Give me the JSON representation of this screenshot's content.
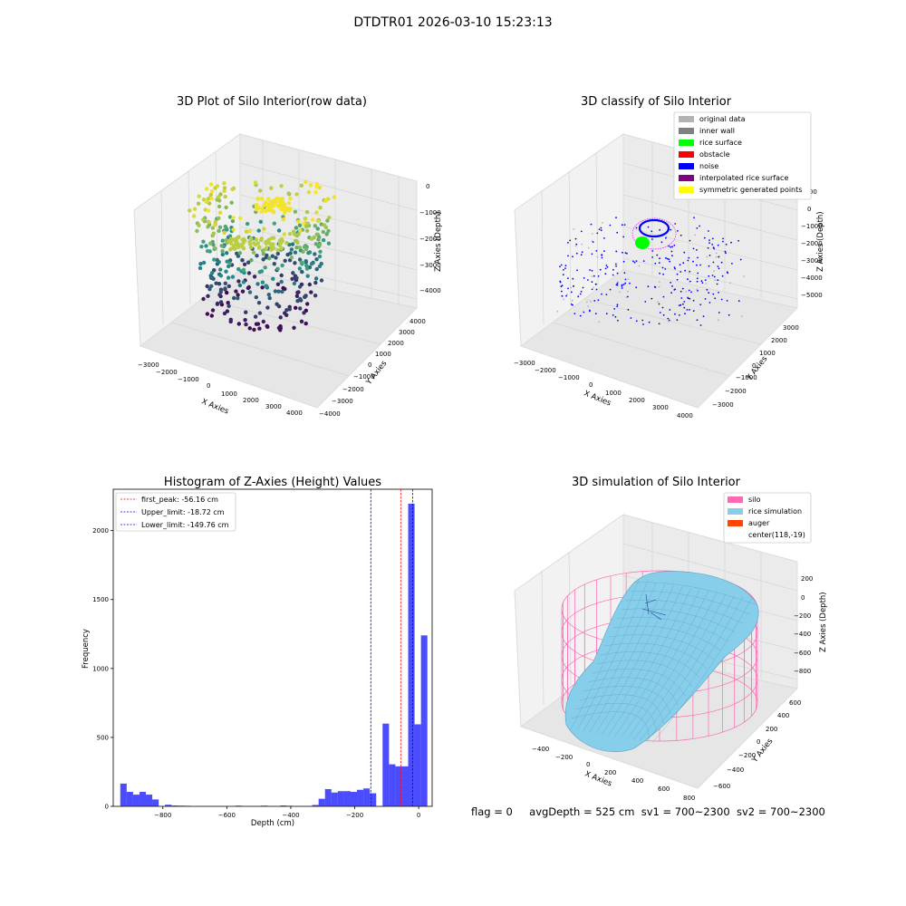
{
  "suptitle": "DTDTR01 2026-03-10 15:23:13",
  "footer": {
    "flag": "flag = 0",
    "avg": "avgDepth = 525 cm",
    "sv1": "sv1 = 700~2300",
    "sv2": "sv2 = 700~2300"
  },
  "chart_data": [
    {
      "type": "scatter",
      "title": "3D Plot of Silo Interior(row data)",
      "xlabel": "X Axies",
      "ylabel": "Y Axies",
      "zlabel": "Z Axies (Depth)",
      "xticks": [
        "−3000",
        "−2000",
        "−1000",
        "0",
        "1000",
        "2000",
        "3000",
        "4000"
      ],
      "yticks": [
        "−4000",
        "−3000",
        "−2000",
        "−1000",
        "0",
        "1000",
        "2000",
        "3000",
        "4000"
      ],
      "zticks": [
        "−4000",
        "−3000",
        "−2000",
        "−1000",
        "0"
      ],
      "colors": {
        "low": "#440154",
        "mid": "#21918c",
        "high": "#fde725"
      }
    },
    {
      "type": "scatter",
      "title": "3D classify of Silo Interior",
      "xlabel": "X Axies",
      "ylabel": "Y Axies",
      "zlabel": "Z Axies (Depth)",
      "xticks": [
        "−3000",
        "−2000",
        "−1000",
        "0",
        "1000",
        "2000",
        "3000",
        "4000"
      ],
      "yticks": [
        "−3000",
        "−2000",
        "−1000",
        "0",
        "1000",
        "2000",
        "3000"
      ],
      "zticks": [
        "−5000",
        "−4000",
        "−3000",
        "−2000",
        "−1000",
        "0",
        "1000",
        "2000"
      ],
      "legend_position": "top-right",
      "legend": [
        {
          "label": "original data",
          "color": "#b3b3b3"
        },
        {
          "label": "inner wall",
          "color": "#808080"
        },
        {
          "label": "rice surface",
          "color": "#00ff00"
        },
        {
          "label": "obstacle",
          "color": "#ff0000"
        },
        {
          "label": "noise",
          "color": "#0000ff"
        },
        {
          "label": "interpolated rice surface",
          "color": "#800080"
        },
        {
          "label": "symmetric generated points",
          "color": "#ffff00"
        }
      ]
    },
    {
      "type": "bar",
      "title": "Histogram of Z-Axies (Height) Values",
      "xlabel": "Depth (cm)",
      "ylabel": "Frequency",
      "xlim": [
        -955,
        42
      ],
      "ylim": [
        0,
        2300
      ],
      "xticks": [
        -800,
        -600,
        -400,
        -200,
        0
      ],
      "xtick_labels": [
        "−800",
        "−600",
        "−400",
        "−200",
        "0"
      ],
      "yticks": [
        0,
        500,
        1000,
        1500,
        2000
      ],
      "bar_color": "#0000ff",
      "bins": [
        {
          "x0": -933,
          "x1": -913,
          "v": 165
        },
        {
          "x0": -913,
          "x1": -893,
          "v": 105
        },
        {
          "x0": -893,
          "x1": -873,
          "v": 85
        },
        {
          "x0": -873,
          "x1": -853,
          "v": 105
        },
        {
          "x0": -853,
          "x1": -833,
          "v": 85
        },
        {
          "x0": -833,
          "x1": -813,
          "v": 50
        },
        {
          "x0": -793,
          "x1": -773,
          "v": 12
        },
        {
          "x0": -773,
          "x1": -753,
          "v": 6
        },
        {
          "x0": -753,
          "x1": -733,
          "v": 5
        },
        {
          "x0": -733,
          "x1": -713,
          "v": 4
        },
        {
          "x0": -573,
          "x1": -553,
          "v": 5
        },
        {
          "x0": -493,
          "x1": -473,
          "v": 5
        },
        {
          "x0": -433,
          "x1": -413,
          "v": 6
        },
        {
          "x0": -413,
          "x1": -393,
          "v": 4
        },
        {
          "x0": -333,
          "x1": -313,
          "v": 10
        },
        {
          "x0": -313,
          "x1": -293,
          "v": 55
        },
        {
          "x0": -293,
          "x1": -273,
          "v": 125
        },
        {
          "x0": -273,
          "x1": -253,
          "v": 100
        },
        {
          "x0": -253,
          "x1": -233,
          "v": 110
        },
        {
          "x0": -233,
          "x1": -213,
          "v": 110
        },
        {
          "x0": -213,
          "x1": -193,
          "v": 105
        },
        {
          "x0": -193,
          "x1": -173,
          "v": 120
        },
        {
          "x0": -173,
          "x1": -153,
          "v": 130
        },
        {
          "x0": -153,
          "x1": -133,
          "v": 95
        },
        {
          "x0": -113,
          "x1": -93,
          "v": 600
        },
        {
          "x0": -93,
          "x1": -73,
          "v": 305
        },
        {
          "x0": -73,
          "x1": -53,
          "v": 290
        },
        {
          "x0": -53,
          "x1": -33,
          "v": 290
        },
        {
          "x0": -33,
          "x1": -13,
          "v": 2195
        },
        {
          "x0": -13,
          "x1": 7,
          "v": 595
        },
        {
          "x0": 7,
          "x1": 27,
          "v": 1240
        }
      ],
      "lines": [
        {
          "label": "first_peak: -56.16 cm",
          "x": -56.16,
          "color": "#ff0000"
        },
        {
          "label": "Upper_limit: -18.72 cm",
          "x": -18.72,
          "color": "#0000ff"
        },
        {
          "label": "Lower_limit: -149.76 cm",
          "x": -149.76,
          "color": "#0000ff"
        }
      ]
    },
    {
      "type": "other",
      "title": "3D simulation of Silo Interior",
      "xlabel": "X Axies",
      "ylabel": "Y Axies",
      "zlabel": "Z Axies (Depth)",
      "xticks": [
        "−400",
        "−200",
        "0",
        "200",
        "400",
        "600",
        "800"
      ],
      "yticks": [
        "−600",
        "−400",
        "−200",
        "0",
        "200",
        "400",
        "600"
      ],
      "zticks": [
        "−800",
        "−600",
        "−400",
        "−200",
        "0",
        "200"
      ],
      "legend_position": "top-right",
      "legend": [
        {
          "label": "silo",
          "color": "#ff69b4"
        },
        {
          "label": "rice simulation",
          "color": "#87ceeb"
        },
        {
          "label": "auger",
          "color": "#ff4500"
        },
        {
          "label": "center(118,-19)",
          "color": ""
        }
      ]
    }
  ]
}
